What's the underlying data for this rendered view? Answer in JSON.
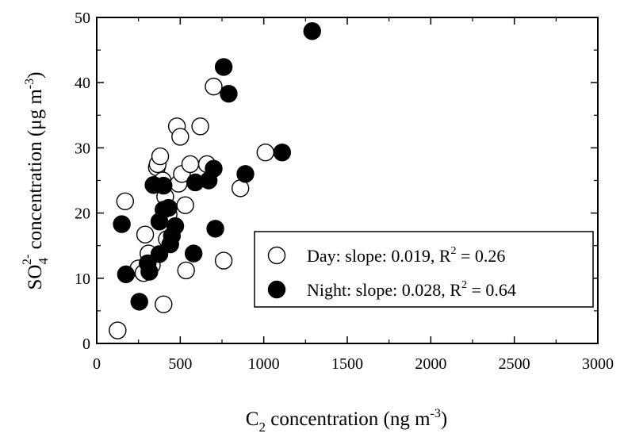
{
  "chart_data": {
    "type": "scatter",
    "xlabel": {
      "main": "C",
      "sub": "2",
      "rest": " concentration (ng m",
      "sup": "-3",
      "close": ")"
    },
    "ylabel": {
      "main": "SO",
      "sub": "4",
      "sup": "2-",
      "rest": " concentration (μg m",
      "sup2": "-3",
      "close": ")"
    },
    "xlim": [
      0,
      3000
    ],
    "ylim": [
      0,
      50
    ],
    "xticks": [
      "0",
      "500",
      "1000",
      "1500",
      "2000",
      "2500",
      "3000"
    ],
    "yticks": [
      "0",
      "10",
      "20",
      "30",
      "40",
      "50"
    ],
    "grid": false,
    "legend_position": "bottom-right",
    "series": [
      {
        "name": "Day",
        "legend": {
          "label": "Day:   slope: 0.019, R",
          "sup": "2",
          "tail": " = 0.26"
        },
        "marker": "open-circle",
        "points": [
          [
            125,
            2
          ],
          [
            170,
            21.8
          ],
          [
            250,
            11.5
          ],
          [
            280,
            10.8
          ],
          [
            290,
            16.7
          ],
          [
            310,
            13.8
          ],
          [
            330,
            12
          ],
          [
            360,
            27
          ],
          [
            365,
            27.5
          ],
          [
            380,
            28.7
          ],
          [
            395,
            25
          ],
          [
            400,
            6
          ],
          [
            410,
            22.5
          ],
          [
            420,
            16
          ],
          [
            430,
            19.8
          ],
          [
            480,
            33.3
          ],
          [
            490,
            24.5
          ],
          [
            500,
            31.7
          ],
          [
            510,
            26
          ],
          [
            530,
            21.2
          ],
          [
            535,
            11.2
          ],
          [
            560,
            27.5
          ],
          [
            620,
            33.3
          ],
          [
            660,
            27.5
          ],
          [
            700,
            39.4
          ],
          [
            760,
            12.7
          ],
          [
            860,
            23.8
          ],
          [
            1010,
            29.3
          ]
        ]
      },
      {
        "name": "Night",
        "legend": {
          "label": "Night: slope: 0.028, R",
          "sup": "2",
          "tail": " = 0.64"
        },
        "marker": "filled-circle",
        "points": [
          [
            150,
            18.3
          ],
          [
            175,
            10.6
          ],
          [
            255,
            6.4
          ],
          [
            305,
            12.3
          ],
          [
            315,
            11
          ],
          [
            340,
            24.3
          ],
          [
            375,
            13.7
          ],
          [
            375,
            18.7
          ],
          [
            400,
            20.5
          ],
          [
            400,
            24.2
          ],
          [
            430,
            20.8
          ],
          [
            440,
            15.2
          ],
          [
            450,
            16.5
          ],
          [
            470,
            18
          ],
          [
            580,
            13.8
          ],
          [
            590,
            24.7
          ],
          [
            670,
            25
          ],
          [
            700,
            26.8
          ],
          [
            710,
            17.6
          ],
          [
            760,
            42.4
          ],
          [
            790,
            38.3
          ],
          [
            890,
            26
          ],
          [
            1110,
            29.3
          ],
          [
            1290,
            47.9
          ]
        ]
      }
    ]
  }
}
